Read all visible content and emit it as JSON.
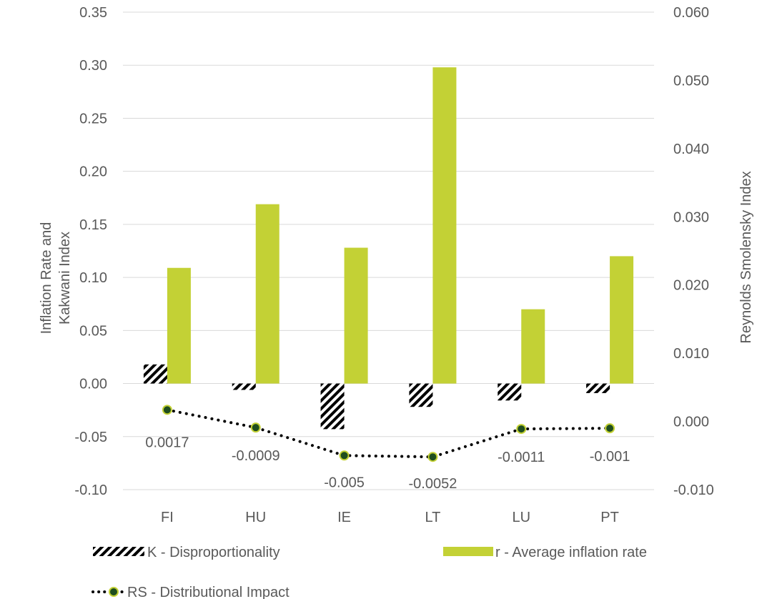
{
  "chart_data": {
    "type": "bar",
    "categories": [
      "FI",
      "HU",
      "IE",
      "LT",
      "LU",
      "PT"
    ],
    "left_axis": {
      "label_lines": [
        "Inflation Rate and",
        "Kakwani Index"
      ],
      "ylim": [
        -0.1,
        0.35
      ],
      "ticks": [
        "-0.10",
        "-0.05",
        "0.00",
        "0.05",
        "0.10",
        "0.15",
        "0.20",
        "0.25",
        "0.30",
        "0.35"
      ],
      "tick_values": [
        -0.1,
        -0.05,
        0.0,
        0.05,
        0.1,
        0.15,
        0.2,
        0.25,
        0.3,
        0.35
      ]
    },
    "right_axis": {
      "label": "Reynolds Smolensky Index",
      "ylim": [
        -0.01,
        0.06
      ],
      "ticks": [
        "-0.010",
        "0.000",
        "0.010",
        "0.020",
        "0.030",
        "0.040",
        "0.050",
        "0.060"
      ],
      "tick_values": [
        -0.01,
        0.0,
        0.01,
        0.02,
        0.03,
        0.04,
        0.05,
        0.06
      ]
    },
    "series": [
      {
        "name": "K - Disproportionality",
        "kind": "bar",
        "axis": "left",
        "pattern": "diagonal-hatch",
        "color": "#000000",
        "values": [
          0.018,
          -0.006,
          -0.043,
          -0.022,
          -0.016,
          -0.009
        ]
      },
      {
        "name": "r - Average inflation rate",
        "kind": "bar",
        "axis": "left",
        "color": "#c3d135",
        "values": [
          0.109,
          0.169,
          0.128,
          0.298,
          0.07,
          0.12
        ]
      },
      {
        "name": "RS - Distributional Impact",
        "kind": "line",
        "axis": "right",
        "line_style": "dotted",
        "marker_fill": "#1f4e1f",
        "marker_edge": "#c3d135",
        "values": [
          0.0017,
          -0.0009,
          -0.005,
          -0.0052,
          -0.0011,
          -0.001
        ],
        "labels": [
          "0.0017",
          "-0.0009",
          "-0.005",
          "-0.0052",
          "-0.0011",
          "-0.001"
        ]
      }
    ],
    "grid": true,
    "legend_position": "bottom"
  }
}
